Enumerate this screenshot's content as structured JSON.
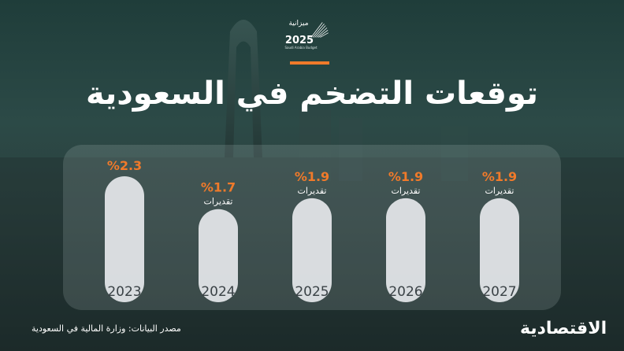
{
  "header": {
    "logo_text": "ميزانية",
    "logo_year": "2025",
    "logo_sub": "Saudi Arabia Budget",
    "title": "توقعات التضخم في السعودية"
  },
  "chart_data": {
    "type": "bar",
    "title": "توقعات التضخم في السعودية",
    "categories": [
      "2023",
      "2024",
      "2025",
      "2026",
      "2027"
    ],
    "values": [
      2.3,
      1.7,
      1.9,
      1.9,
      1.9
    ],
    "value_labels": [
      "%2.3",
      "%1.7",
      "%1.9",
      "%1.9",
      "%1.9"
    ],
    "notes": [
      "",
      "تقديرات",
      "تقديرات",
      "تقديرات",
      "تقديرات"
    ],
    "xlabel": "",
    "ylabel": "",
    "ylim": [
      0,
      2.3
    ],
    "grid": false,
    "bar_color": "#e6e8ec",
    "label_color": "#f07a2a"
  },
  "footer": {
    "source": "مصدر البيانات: وزارة المالية في السعودية",
    "brand": "الاقتصادية"
  },
  "colors": {
    "accent": "#f07a2a",
    "background": "#2a4542"
  }
}
